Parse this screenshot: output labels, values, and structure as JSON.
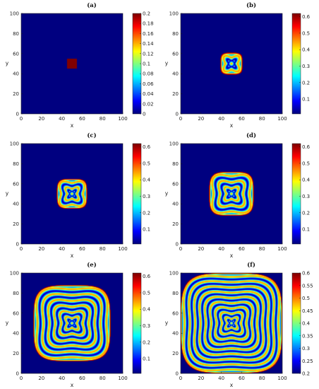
{
  "chart_data": [
    {
      "type": "heatmap",
      "label": "(a)",
      "xlabel": "x",
      "ylabel": "y",
      "xlim": [
        0,
        100
      ],
      "ylim": [
        0,
        100
      ],
      "xticks": [
        0,
        20,
        40,
        60,
        80,
        100
      ],
      "yticks": [
        0,
        20,
        40,
        60,
        80,
        100
      ],
      "colorbar": {
        "min": 0,
        "max": 0.2,
        "ticks": [
          0,
          0.02,
          0.04,
          0.06,
          0.08,
          0.1,
          0.12,
          0.14,
          0.16,
          0.18,
          0.2
        ],
        "tick_labels": [
          "0",
          "0.02",
          "0.04",
          "0.06",
          "0.08",
          "0.1",
          "0.12",
          "0.14",
          "0.16",
          "0.18",
          "0.2"
        ]
      },
      "pattern": {
        "kind": "square",
        "center": [
          50,
          50
        ],
        "half_width": 5,
        "value": 0.2,
        "background": 0
      }
    },
    {
      "type": "heatmap",
      "label": "(b)",
      "xlabel": "x",
      "ylabel": "y",
      "xlim": [
        0,
        100
      ],
      "ylim": [
        0,
        100
      ],
      "xticks": [
        0,
        20,
        40,
        60,
        80,
        100
      ],
      "yticks": [
        0,
        20,
        40,
        60,
        80,
        100
      ],
      "colorbar": {
        "min": 0.01,
        "max": 0.62,
        "ticks": [
          0.1,
          0.2,
          0.3,
          0.4,
          0.5,
          0.6
        ],
        "tick_labels": [
          "0.1",
          "0.2",
          "0.3",
          "0.4",
          "0.5",
          "0.6"
        ]
      },
      "pattern": {
        "kind": "rings",
        "center": [
          50,
          50
        ],
        "extent": 11,
        "rings": 1,
        "background": 0.01
      }
    },
    {
      "type": "heatmap",
      "label": "(c)",
      "xlabel": "x",
      "ylabel": "y",
      "xlim": [
        0,
        100
      ],
      "ylim": [
        0,
        100
      ],
      "xticks": [
        0,
        20,
        40,
        60,
        80,
        100
      ],
      "yticks": [
        0,
        20,
        40,
        60,
        80,
        100
      ],
      "colorbar": {
        "min": 0.01,
        "max": 0.62,
        "ticks": [
          0.1,
          0.2,
          0.3,
          0.4,
          0.5,
          0.6
        ],
        "tick_labels": [
          "0.1",
          "0.2",
          "0.3",
          "0.4",
          "0.5",
          "0.6"
        ]
      },
      "pattern": {
        "kind": "rings",
        "center": [
          50,
          50
        ],
        "extent": 15,
        "rings": 2,
        "background": 0.01
      }
    },
    {
      "type": "heatmap",
      "label": "(d)",
      "xlabel": "x",
      "ylabel": "y",
      "xlim": [
        0,
        100
      ],
      "ylim": [
        0,
        100
      ],
      "xticks": [
        0,
        20,
        40,
        60,
        80,
        100
      ],
      "yticks": [
        0,
        20,
        40,
        60,
        80,
        100
      ],
      "colorbar": {
        "min": 0.01,
        "max": 0.62,
        "ticks": [
          0.1,
          0.2,
          0.3,
          0.4,
          0.5,
          0.6
        ],
        "tick_labels": [
          "0.1",
          "0.2",
          "0.3",
          "0.4",
          "0.5",
          "0.6"
        ]
      },
      "pattern": {
        "kind": "rings",
        "center": [
          50,
          50
        ],
        "extent": 22,
        "rings": 3,
        "background": 0.01
      }
    },
    {
      "type": "heatmap",
      "label": "(e)",
      "xlabel": "x",
      "ylabel": "y",
      "xlim": [
        0,
        100
      ],
      "ylim": [
        0,
        100
      ],
      "xticks": [
        0,
        20,
        40,
        60,
        80,
        100
      ],
      "yticks": [
        0,
        20,
        40,
        60,
        80,
        100
      ],
      "colorbar": {
        "min": 0.01,
        "max": 0.62,
        "ticks": [
          0.1,
          0.2,
          0.3,
          0.4,
          0.5,
          0.6
        ],
        "tick_labels": [
          "0.1",
          "0.2",
          "0.3",
          "0.4",
          "0.5",
          "0.6"
        ]
      },
      "pattern": {
        "kind": "rings",
        "center": [
          50,
          50
        ],
        "extent": 38,
        "rings": 6,
        "background": 0.01
      }
    },
    {
      "type": "heatmap",
      "label": "(f)",
      "xlabel": "x",
      "ylabel": "y",
      "xlim": [
        0,
        100
      ],
      "ylim": [
        0,
        100
      ],
      "xticks": [
        0,
        20,
        40,
        60,
        80,
        100
      ],
      "yticks": [
        0,
        20,
        40,
        60,
        80,
        100
      ],
      "colorbar": {
        "min": 0.2,
        "max": 0.6,
        "ticks": [
          0.2,
          0.25,
          0.3,
          0.35,
          0.4,
          0.45,
          0.5,
          0.55,
          0.6
        ],
        "tick_labels": [
          "0.2",
          "0.25",
          "0.3",
          "0.35",
          "0.4",
          "0.45",
          "0.5",
          "0.55",
          "0.6"
        ]
      },
      "pattern": {
        "kind": "rings",
        "center": [
          50,
          50
        ],
        "extent": 50,
        "rings": 9,
        "background": 0.2
      }
    }
  ]
}
